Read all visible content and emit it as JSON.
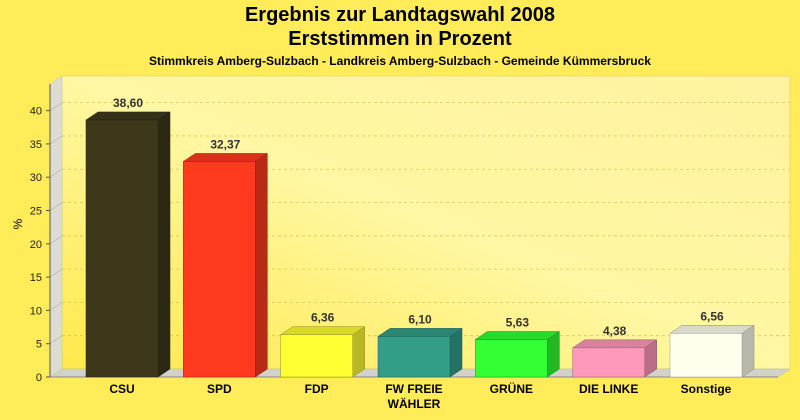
{
  "theme": {
    "page_background": "#ffec58",
    "wall_gradient": [
      "#ffe94a",
      "#fff7a3",
      "#fff2a0"
    ],
    "side_wall": "#dedcd0",
    "floor": "#d2d2c8"
  },
  "chart_data": {
    "type": "bar",
    "title": "Ergebnis zur Landtagswahl 2008",
    "subtitle": "Erststimmen in Prozent",
    "caption": "Stimmkreis Amberg-Sulzbach - Landkreis Amberg-Sulzbach - Gemeinde Kümmersbruck",
    "categories": [
      "CSU",
      "SPD",
      "FDP",
      "FW FREIE WÄHLER",
      "GRÜNE",
      "DIE LINKE",
      "Sonstige"
    ],
    "values": [
      38.6,
      32.37,
      6.36,
      6.1,
      5.63,
      4.38,
      6.56
    ],
    "value_labels": [
      "38,60",
      "32,37",
      "6,36",
      "6,10",
      "5,63",
      "4,38",
      "6,56"
    ],
    "colors": [
      "#3e381b",
      "#ff3a1f",
      "#ffff33",
      "#339e88",
      "#33ff33",
      "#ff99bb",
      "#ffffee"
    ],
    "ylabel": "%",
    "yticks": [
      0,
      5,
      10,
      15,
      20,
      25,
      30,
      35,
      40
    ],
    "ylim": [
      0,
      44
    ],
    "grid": true
  }
}
